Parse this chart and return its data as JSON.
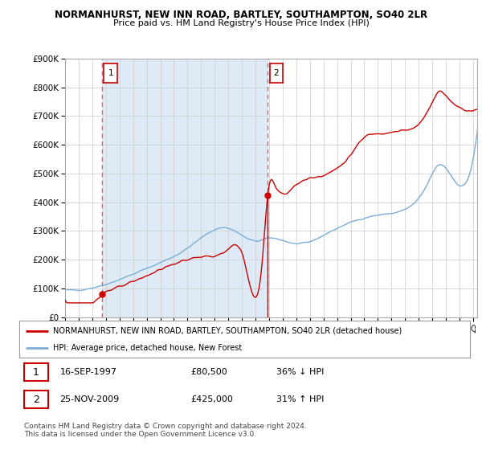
{
  "title": "NORMANHURST, NEW INN ROAD, BARTLEY, SOUTHAMPTON, SO40 2LR",
  "subtitle": "Price paid vs. HM Land Registry's House Price Index (HPI)",
  "legend_line1": "NORMANHURST, NEW INN ROAD, BARTLEY, SOUTHAMPTON, SO40 2LR (detached house)",
  "legend_line2": "HPI: Average price, detached house, New Forest",
  "footnote1": "Contains HM Land Registry data © Crown copyright and database right 2024.",
  "footnote2": "This data is licensed under the Open Government Licence v3.0.",
  "purchase1_date": "16-SEP-1997",
  "purchase1_price": "£80,500",
  "purchase1_hpi": "36% ↓ HPI",
  "purchase1_year": 1997.71,
  "purchase1_value": 80500,
  "purchase2_date": "25-NOV-2009",
  "purchase2_price": "£425,000",
  "purchase2_hpi": "31% ↑ HPI",
  "purchase2_year": 2009.9,
  "purchase2_value": 425000,
  "hpi_color": "#7aadd6",
  "property_color": "#cc0000",
  "dashed_line_color": "#e06060",
  "shade_color": "#deeaf5",
  "background_color": "#ffffff",
  "grid_color": "#cccccc",
  "ylim": [
    0,
    900000
  ],
  "xlim_start": 1995.0,
  "xlim_end": 2025.3
}
